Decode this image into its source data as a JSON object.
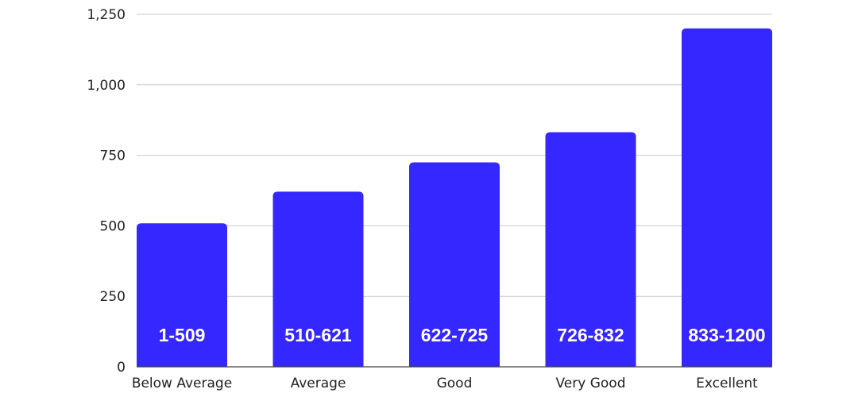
{
  "chart_data": {
    "type": "bar",
    "categories": [
      "Below Average",
      "Average",
      "Good",
      "Very Good",
      "Excellent"
    ],
    "values": [
      509,
      621,
      725,
      832,
      1200
    ],
    "data_labels": [
      "1-509",
      "510-621",
      "622-725",
      "726-832",
      "833-1200"
    ],
    "y_ticks": [
      0,
      250,
      500,
      750,
      1000,
      1250
    ],
    "y_tick_labels": [
      "0",
      "250",
      "500",
      "750",
      "1,000",
      "1,250"
    ],
    "ylim": [
      0,
      1250
    ],
    "grid": true,
    "bar_color": "#3427ff"
  }
}
